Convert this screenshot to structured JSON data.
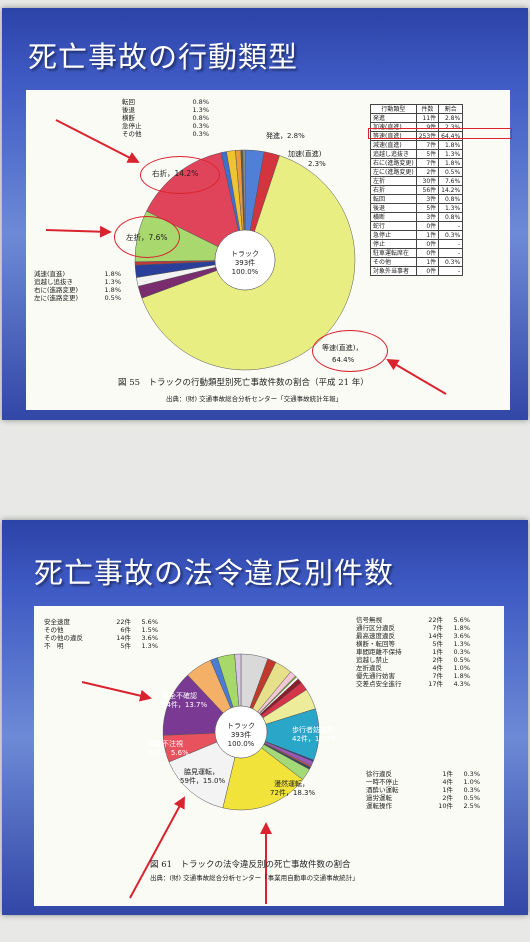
{
  "slide1": {
    "title": "死亡事故の行動類型",
    "caption": "図 55　トラックの行動類型別死亡事故件数の割合（平成 21 年）",
    "source": "出典：(財) 交通事故総合分析センター「交通事故統計年報」",
    "center": {
      "l1": "トラック",
      "l2": "393件",
      "l3": "100.0%"
    },
    "labels": {
      "hasshin": "発進，2.8%",
      "kasoku": "加速(直進)",
      "kasoku_pct": "2.3%",
      "touso": "等速(直進)，",
      "touso_pct": "64.4%",
      "usetsu": "右折，14.2%",
      "sasetsu": "左折，7.6%"
    },
    "left_top_list": [
      {
        "name": "転回",
        "pct": "0.8%"
      },
      {
        "name": "後退",
        "pct": "1.3%"
      },
      {
        "name": "横断",
        "pct": "0.8%"
      },
      {
        "name": "急停止",
        "pct": "0.3%"
      },
      {
        "name": "その他",
        "pct": "0.3%"
      }
    ],
    "left_mid_list": [
      {
        "name": "減速(直進)",
        "pct": "1.8%"
      },
      {
        "name": "追越し追抜き",
        "pct": "1.3%"
      },
      {
        "name": "右に(進路変更)",
        "pct": "1.8%"
      },
      {
        "name": "左に(進路変更)",
        "pct": "0.5%"
      }
    ],
    "table": {
      "headers": [
        "行動類型",
        "件数",
        "割合"
      ],
      "rows": [
        [
          "発進",
          "11件",
          "2.8%"
        ],
        [
          "加速(直進)",
          "9件",
          "2.3%"
        ],
        [
          "等速(直進)",
          "253件",
          "64.4%"
        ],
        [
          "減速(直進)",
          "7件",
          "1.8%"
        ],
        [
          "追越し追抜き",
          "5件",
          "1.3%"
        ],
        [
          "右に(進路変更)",
          "7件",
          "1.8%"
        ],
        [
          "左に(進路変更)",
          "2件",
          "0.5%"
        ],
        [
          "左折",
          "30件",
          "7.6%"
        ],
        [
          "右折",
          "56件",
          "14.2%"
        ],
        [
          "転回",
          "3件",
          "0.8%"
        ],
        [
          "後退",
          "5件",
          "1.3%"
        ],
        [
          "横断",
          "3件",
          "0.8%"
        ],
        [
          "蛇行",
          "0件",
          "-"
        ],
        [
          "急停止",
          "1件",
          "0.3%"
        ],
        [
          "停止",
          "0件",
          "-"
        ],
        [
          "駐車運転席在",
          "0件",
          "-"
        ],
        [
          "その他",
          "1件",
          "0.3%"
        ],
        [
          "対象外当事者",
          "0件",
          "-"
        ]
      ]
    }
  },
  "slide2": {
    "title": "死亡事故の法令違反別件数",
    "caption": "図 61　トラックの法令違反別の死亡事故件数の割合",
    "source": "出典：(財) 交通事故総合分析センター「事業用自動車の交通事故統計」",
    "center": {
      "l1": "トラック",
      "l2": "393件",
      "l3": "100.0%"
    },
    "inner_labels": {
      "anzen": "安全不確認",
      "anzen_val": "54件，13.7%",
      "dosa": "動静不注視",
      "dosa_val": "22件，5.6%",
      "waki": "脇見運転，",
      "waki_val": "59件，15.0%",
      "manzen": "漫然運転，",
      "manzen_val": "72件，18.3%",
      "hokosha": "歩行者妨害等，",
      "hokosha_val": "42件，10.7%"
    },
    "left_legend": [
      {
        "name": "安全速度",
        "count": "22件",
        "pct": "5.6%"
      },
      {
        "name": "その他",
        "count": "6件",
        "pct": "1.5%"
      },
      {
        "name": "その他の違反",
        "count": "14件",
        "pct": "3.6%"
      },
      {
        "name": "不　明",
        "count": "5件",
        "pct": "1.3%"
      }
    ],
    "right_legend": [
      {
        "name": "信号無視",
        "count": "22件",
        "pct": "5.6%"
      },
      {
        "name": "通行区分違反",
        "count": "7件",
        "pct": "1.8%"
      },
      {
        "name": "最高速度違反",
        "count": "14件",
        "pct": "3.6%"
      },
      {
        "name": "横断・転回等",
        "count": "5件",
        "pct": "1.3%"
      },
      {
        "name": "車間距離不保持",
        "count": "1件",
        "pct": "0.3%"
      },
      {
        "name": "追越し禁止",
        "count": "2件",
        "pct": "0.5%"
      },
      {
        "name": "左折違反",
        "count": "4件",
        "pct": "1.0%"
      },
      {
        "name": "優先通行妨害",
        "count": "7件",
        "pct": "1.8%"
      },
      {
        "name": "交差点安全進行",
        "count": "17件",
        "pct": "4.3%"
      }
    ],
    "lower_legend": [
      {
        "name": "徐行違反",
        "count": "1件",
        "pct": "0.3%"
      },
      {
        "name": "一時不停止",
        "count": "4件",
        "pct": "1.0%"
      },
      {
        "name": "酒酔い運転",
        "count": "1件",
        "pct": "0.3%"
      },
      {
        "name": "過労運転",
        "count": "2件",
        "pct": "0.5%"
      },
      {
        "name": "運転操作",
        "count": "10件",
        "pct": "2.5%"
      }
    ]
  },
  "chart_data": [
    {
      "type": "pie",
      "title": "トラックの行動類型別死亡事故件数の割合（平成 21 年）",
      "slices": [
        {
          "name": "発進",
          "count": 11,
          "value": 2.8,
          "color": "#4f7fd6"
        },
        {
          "name": "加速(直進)",
          "count": 9,
          "value": 2.3,
          "color": "#d4343d"
        },
        {
          "name": "等速(直進)",
          "count": 253,
          "value": 64.4,
          "color": "#e8ee82"
        },
        {
          "name": "減速(直進)",
          "count": 7,
          "value": 1.8,
          "color": "#7a2d6e"
        },
        {
          "name": "追越し追抜き",
          "count": 5,
          "value": 1.3,
          "color": "#f2f2f2"
        },
        {
          "name": "右に(進路変更)",
          "count": 7,
          "value": 1.8,
          "color": "#2a3f9a"
        },
        {
          "name": "左に(進路変更)",
          "count": 2,
          "value": 0.5,
          "color": "#c03a3a"
        },
        {
          "name": "左折",
          "count": 30,
          "value": 7.6,
          "color": "#a9d86e"
        },
        {
          "name": "右折",
          "count": 56,
          "value": 14.2,
          "color": "#e0445a"
        },
        {
          "name": "転回",
          "count": 3,
          "value": 0.8,
          "color": "#3d6fd0"
        },
        {
          "name": "後退",
          "count": 5,
          "value": 1.3,
          "color": "#f1c232"
        },
        {
          "name": "横断",
          "count": 3,
          "value": 0.8,
          "color": "#e89a3c"
        },
        {
          "name": "急停止",
          "count": 1,
          "value": 0.3,
          "color": "#5a5a5a"
        },
        {
          "name": "その他",
          "count": 1,
          "value": 0.3,
          "color": "#999999"
        }
      ]
    },
    {
      "type": "pie",
      "title": "トラックの法令違反別の死亡事故件数の割合",
      "slices": [
        {
          "name": "信号無視",
          "count": 22,
          "value": 5.6,
          "color": "#d9d9d9"
        },
        {
          "name": "通行区分違反",
          "count": 7,
          "value": 1.8,
          "color": "#c0392b"
        },
        {
          "name": "最高速度違反",
          "count": 14,
          "value": 3.6,
          "color": "#e6e08a"
        },
        {
          "name": "横断・転回等",
          "count": 5,
          "value": 1.3,
          "color": "#f4c7d6"
        },
        {
          "name": "車間距離不保持",
          "count": 1,
          "value": 0.3,
          "color": "#7cb342"
        },
        {
          "name": "追越し禁止",
          "count": 2,
          "value": 0.5,
          "color": "#ffffff"
        },
        {
          "name": "左折違反",
          "count": 4,
          "value": 1.0,
          "color": "#8b1d2c"
        },
        {
          "name": "優先通行妨害",
          "count": 7,
          "value": 1.8,
          "color": "#d6344a"
        },
        {
          "name": "交差点安全進行",
          "count": 17,
          "value": 4.3,
          "color": "#ecec9a"
        },
        {
          "name": "歩行者妨害等",
          "count": 42,
          "value": 10.7,
          "color": "#2aa6c8"
        },
        {
          "name": "徐行違反",
          "count": 1,
          "value": 0.3,
          "color": "#2c3e9c"
        },
        {
          "name": "一時不停止",
          "count": 4,
          "value": 1.0,
          "color": "#9b59b6"
        },
        {
          "name": "酒酔い運転",
          "count": 1,
          "value": 0.3,
          "color": "#e74c3c"
        },
        {
          "name": "過労運転",
          "count": 2,
          "value": 0.5,
          "color": "#34495e"
        },
        {
          "name": "運転操作",
          "count": 10,
          "value": 2.5,
          "color": "#a3d977"
        },
        {
          "name": "漫然運転",
          "count": 72,
          "value": 18.3,
          "color": "#f2e33a"
        },
        {
          "name": "脇見運転",
          "count": 59,
          "value": 15.0,
          "color": "#f3f3f3"
        },
        {
          "name": "動静不注視",
          "count": 22,
          "value": 5.6,
          "color": "#e8525e"
        },
        {
          "name": "安全不確認",
          "count": 54,
          "value": 13.7,
          "color": "#7a3a93"
        },
        {
          "name": "安全速度",
          "count": 22,
          "value": 5.6,
          "color": "#f4b066"
        },
        {
          "name": "その他",
          "count": 6,
          "value": 1.5,
          "color": "#4a7cd6"
        },
        {
          "name": "その他の違反",
          "count": 14,
          "value": 3.6,
          "color": "#a7d96a"
        },
        {
          "name": "不明",
          "count": 5,
          "value": 1.3,
          "color": "#d7c6e6"
        }
      ]
    }
  ]
}
